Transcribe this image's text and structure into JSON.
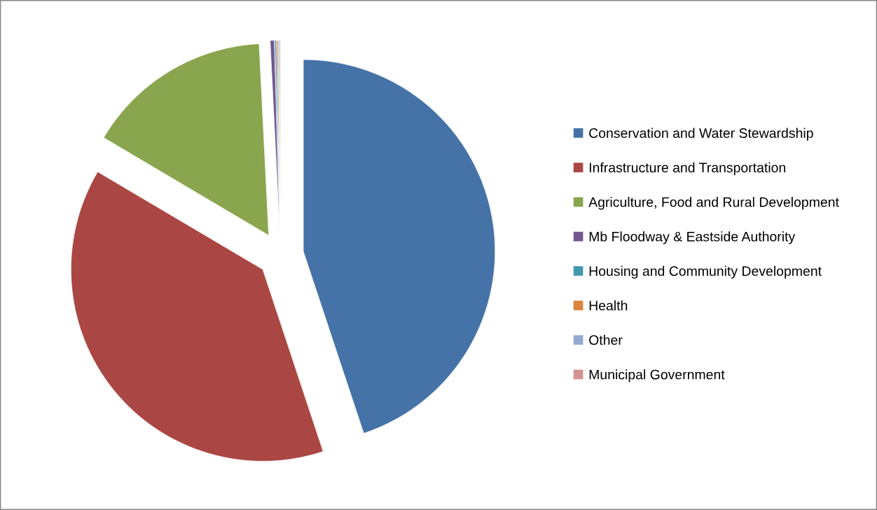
{
  "chart_data": {
    "type": "pie",
    "categories": [
      "Conservation and Water Stewardship",
      "Infrastructure and Transportation",
      "Agriculture, Food and Rural Development",
      "Mb Floodway & Eastside Authority",
      "Housing and Community Development",
      "Health",
      "Other",
      "Municipal Government"
    ],
    "values": [
      44.9,
      38.6,
      15.7,
      0.35,
      0.15,
      0.12,
      0.1,
      0.08
    ],
    "colors": [
      "#4572a7",
      "#aa4643",
      "#89a54e",
      "#71588f",
      "#4198af",
      "#db843d",
      "#93a9cf",
      "#d19392"
    ],
    "legend": "right"
  }
}
